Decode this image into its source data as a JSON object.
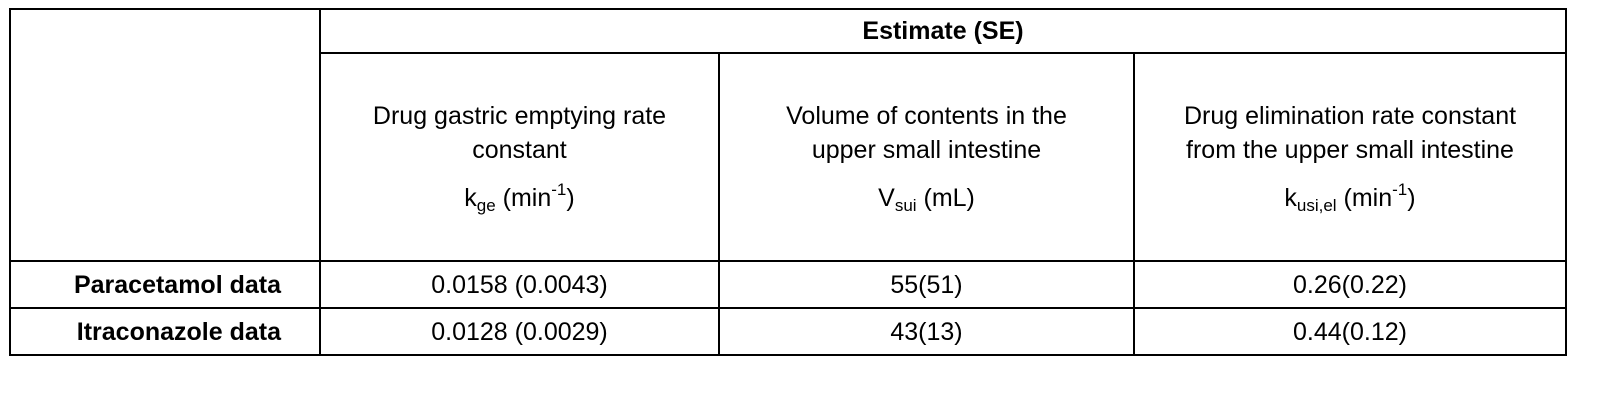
{
  "table": {
    "group_header": "Estimate (SE)",
    "columns": [
      {
        "name_line1": "Drug gastric emptying rate",
        "name_line2": "constant",
        "symbol_main": "k",
        "symbol_sub": "ge",
        "unit_prefix": " (min",
        "unit_sup": "-1",
        "unit_suffix": ")"
      },
      {
        "name_line1": "Volume of contents in the",
        "name_line2": "upper small intestine",
        "symbol_main": "V",
        "symbol_sub": "sui",
        "unit_prefix": " (mL)",
        "unit_sup": "",
        "unit_suffix": ""
      },
      {
        "name_line1": "Drug elimination rate constant",
        "name_line2": "from the upper small intestine",
        "symbol_main": "k",
        "symbol_sub": "usi,el",
        "unit_prefix": " (min",
        "unit_sup": "-1",
        "unit_suffix": ")"
      }
    ],
    "rows": [
      {
        "label": "Paracetamol data",
        "values": [
          "0.0158 (0.0043)",
          "55(51)",
          "0.26(0.22)"
        ]
      },
      {
        "label": "Itraconazole data",
        "values": [
          "0.0128 (0.0029)",
          "43(13)",
          "0.44(0.12)"
        ]
      }
    ]
  }
}
